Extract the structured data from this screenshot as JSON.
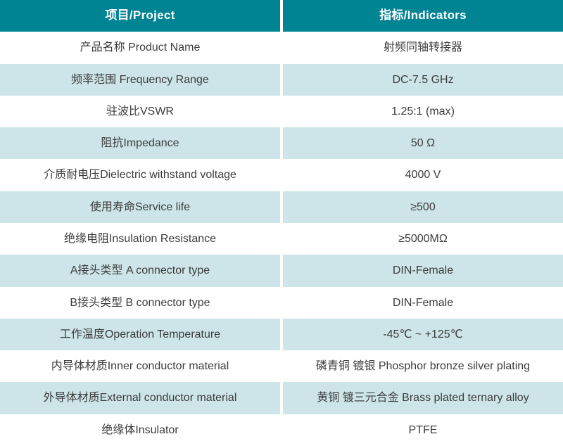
{
  "table": {
    "header": {
      "project": "项目/Project",
      "indicators": "指标/Indicators"
    },
    "rows": [
      {
        "project": "产品名称 Product Name",
        "indicator": "射频同轴转接器"
      },
      {
        "project": "频率范围 Frequency Range",
        "indicator": "DC-7.5 GHz"
      },
      {
        "project": "驻波比VSWR",
        "indicator": "1.25:1 (max)"
      },
      {
        "project": "阻抗Impedance",
        "indicator": "50 Ω"
      },
      {
        "project": "介质耐电压Dielectric withstand voltage",
        "indicator": "4000 V"
      },
      {
        "project": "使用寿命Service life",
        "indicator": "≥500"
      },
      {
        "project": "绝缘电阻Insulation Resistance",
        "indicator": "≥5000MΩ"
      },
      {
        "project": "A接头类型 A connector type",
        "indicator": "DIN-Female"
      },
      {
        "project": "B接头类型 B connector type",
        "indicator": "DIN-Female"
      },
      {
        "project": "工作温度Operation Temperature",
        "indicator": "-45℃ ~ +125℃"
      },
      {
        "project": "内导体材质Inner conductor material",
        "indicator": "磷青铜 镀银 Phosphor bronze silver plating"
      },
      {
        "project": "外导体材质External conductor material",
        "indicator": "黄铜 镀三元合金 Brass plated ternary alloy"
      },
      {
        "project": "绝缘体Insulator",
        "indicator": "PTFE"
      }
    ],
    "colors": {
      "header_bg": "#008494",
      "header_text": "#ffffff",
      "row_bg": "#ffffff",
      "row_alt_bg": "#cde5e8",
      "body_text": "#3c3c3c",
      "divider": "#ffffff"
    }
  }
}
